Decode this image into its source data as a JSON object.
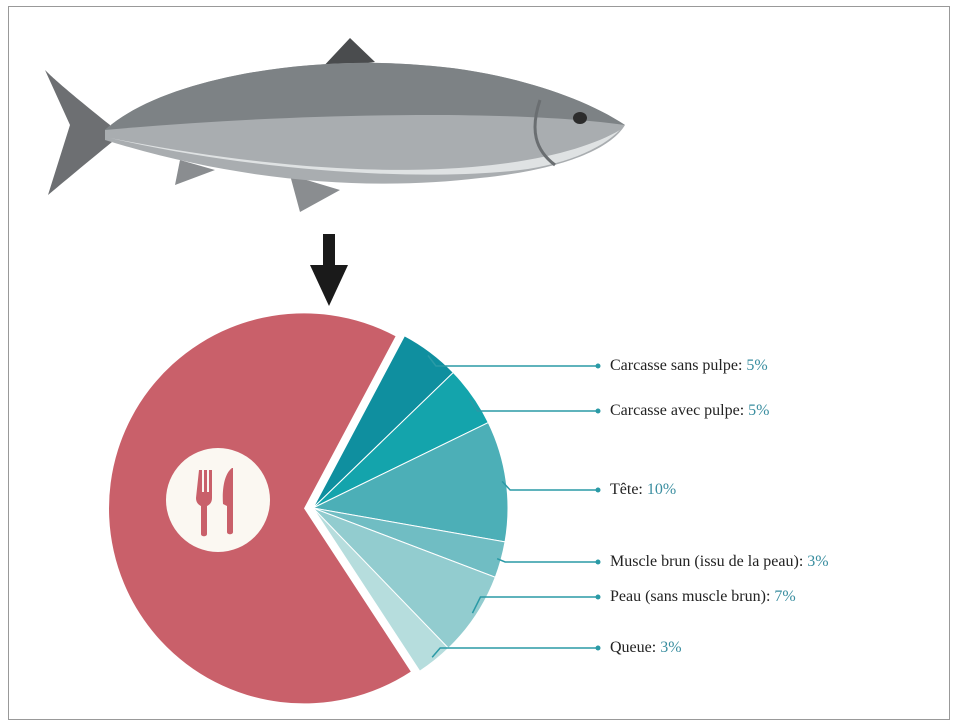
{
  "chart_data": {
    "type": "pie",
    "categories": [
      "Carcasse sans pulpe:",
      "Carcasse avec pulpe:",
      "Tête:",
      "Muscle brun (issu de la peau):",
      "Peau (sans muscle brun):",
      "Queue:",
      null
    ],
    "values": [
      5,
      5,
      10,
      3,
      7,
      3,
      67
    ],
    "value_labels": [
      "5%",
      "5%",
      "10%",
      "3%",
      "7%",
      "3%",
      null
    ],
    "colors": [
      "#0f8f9f",
      "#14a4ac",
      "#4cafb7",
      "#70bdc3",
      "#92cccf",
      "#b6dddd",
      "#c9606a"
    ]
  }
}
